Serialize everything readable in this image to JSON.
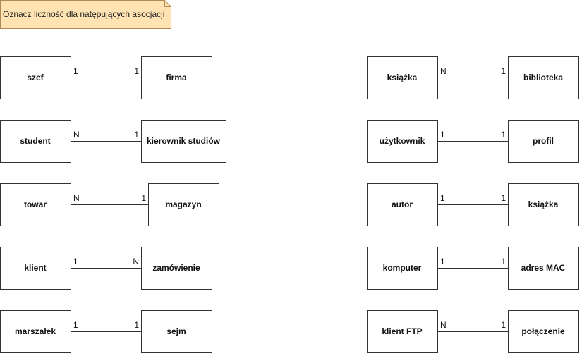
{
  "note": {
    "text": "Oznacz liczność dla natępujących asocjacji",
    "fill": "#ffe3b3",
    "border": "#b08a55"
  },
  "associations": [
    {
      "left": "szef",
      "left_card": "1",
      "right_card": "1",
      "right": "firma"
    },
    {
      "left": "student",
      "left_card": "N",
      "right_card": "1",
      "right": "kierownik studiów"
    },
    {
      "left": "towar",
      "left_card": "N",
      "right_card": "1",
      "right": "magazyn"
    },
    {
      "left": "klient",
      "left_card": "1",
      "right_card": "N",
      "right": "zamówienie"
    },
    {
      "left": "marszałek",
      "left_card": "1",
      "right_card": "1",
      "right": "sejm"
    },
    {
      "left": "książka",
      "left_card": "N",
      "right_card": "1",
      "right": "biblioteka"
    },
    {
      "left": "użytkownik",
      "left_card": "1",
      "right_card": "1",
      "right": "profil"
    },
    {
      "left": "autor",
      "left_card": "1",
      "right_card": "1",
      "right": "książka"
    },
    {
      "left": "komputer",
      "left_card": "1",
      "right_card": "1",
      "right": "adres MAC"
    },
    {
      "left": "klient FTP",
      "left_card": "N",
      "right_card": "1",
      "right": "połączenie"
    }
  ]
}
